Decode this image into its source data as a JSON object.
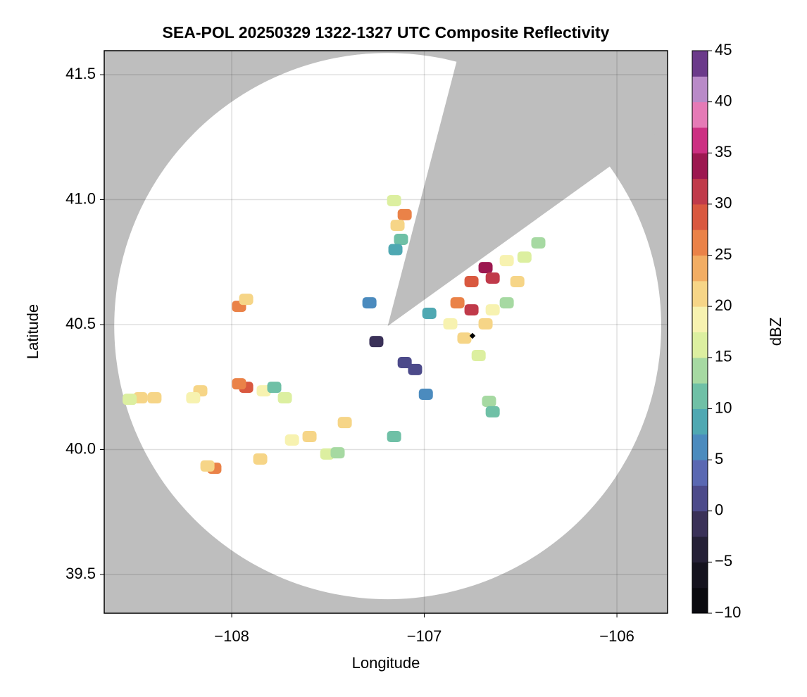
{
  "chart_data": {
    "type": "heatmap",
    "title": "SEA-POL 20250329 1322-1327 UTC Composite Reflectivity",
    "xlabel": "Longitude",
    "ylabel": "Latitude",
    "xlim": [
      -108.662,
      -105.737
    ],
    "ylim": [
      39.345,
      41.596
    ],
    "xticks": [
      {
        "value": -108,
        "label": "−108"
      },
      {
        "value": -107,
        "label": "−107"
      },
      {
        "value": -106,
        "label": "−106"
      }
    ],
    "yticks": [
      39.5,
      {
        "value": 40,
        "label": "40.0"
      },
      40.5,
      {
        "value": 41,
        "label": "41.0"
      },
      41.5
    ],
    "grid": true,
    "background_color": "#bebebe",
    "coverage": {
      "center": [
        -107.19,
        40.494
      ],
      "radius_lon": 1.42,
      "radius_lat": 1.093,
      "blocked_sector": [
        [
          -106.84,
          41.53
        ],
        [
          -106.06,
          41.12
        ]
      ]
    },
    "x": [
      -107.157,
      -107.102,
      -107.139,
      -107.121,
      -107.15,
      -106.682,
      -106.755,
      -106.645,
      -106.572,
      -106.48,
      -106.408,
      -106.828,
      -106.755,
      -106.682,
      -106.865,
      -106.974,
      -106.792,
      -106.718,
      -106.645,
      -106.572,
      -106.517,
      -106.664,
      -106.645,
      -107.157,
      -107.249,
      -107.102,
      -107.048,
      -106.992,
      -107.962,
      -107.925,
      -108.474,
      -108.401,
      -108.53,
      -108.163,
      -108.2,
      -107.925,
      -107.962,
      -107.834,
      -107.724,
      -107.779,
      -108.09,
      -108.126,
      -107.852,
      -107.687,
      -107.596,
      -107.504,
      -107.45,
      -107.413,
      -107.285
    ],
    "y": [
      40.996,
      40.94,
      40.897,
      40.841,
      40.8,
      40.728,
      40.672,
      40.686,
      40.756,
      40.77,
      40.827,
      40.587,
      40.559,
      40.503,
      40.503,
      40.545,
      40.446,
      40.376,
      40.559,
      40.587,
      40.672,
      40.193,
      40.151,
      40.052,
      40.432,
      40.348,
      40.32,
      40.221,
      40.573,
      40.601,
      40.207,
      40.207,
      40.201,
      40.235,
      40.207,
      40.249,
      40.263,
      40.235,
      40.207,
      40.249,
      39.925,
      39.934,
      39.962,
      40.038,
      40.052,
      39.982,
      39.987,
      40.108,
      40.587
    ],
    "values": [
      15,
      25,
      20,
      12,
      8,
      33,
      28,
      30,
      18,
      16,
      14,
      25,
      30,
      22,
      18,
      8,
      20,
      16,
      18,
      14,
      20,
      14,
      12,
      12,
      -2,
      0,
      2,
      5,
      25,
      20,
      20,
      22,
      15,
      22,
      18,
      28,
      25,
      18,
      16,
      12,
      25,
      20,
      20,
      18,
      20,
      16,
      14,
      20,
      5
    ],
    "site": [
      -106.75,
      40.455
    ],
    "colorbar": {
      "label": "dBZ",
      "clim": [
        -10,
        45
      ],
      "ticks": [
        {
          "value": -10,
          "label": "−10"
        },
        {
          "value": -5,
          "label": "−5"
        },
        0,
        5,
        10,
        15,
        20,
        25,
        30,
        35,
        40,
        45
      ],
      "colors": [
        "#0a0a0f",
        "#15131e",
        "#252036",
        "#3a3158",
        "#4c4a8a",
        "#5a68b2",
        "#4b8bbe",
        "#4fa8b2",
        "#6fc0a6",
        "#a6d9a2",
        "#dcefa0",
        "#f7f2b0",
        "#f6d587",
        "#f2ad63",
        "#ea8248",
        "#d9583f",
        "#c03a4a",
        "#9c1850",
        "#cc2f82",
        "#e57ab6",
        "#b98ac8",
        "#6b3a8a"
      ]
    }
  }
}
